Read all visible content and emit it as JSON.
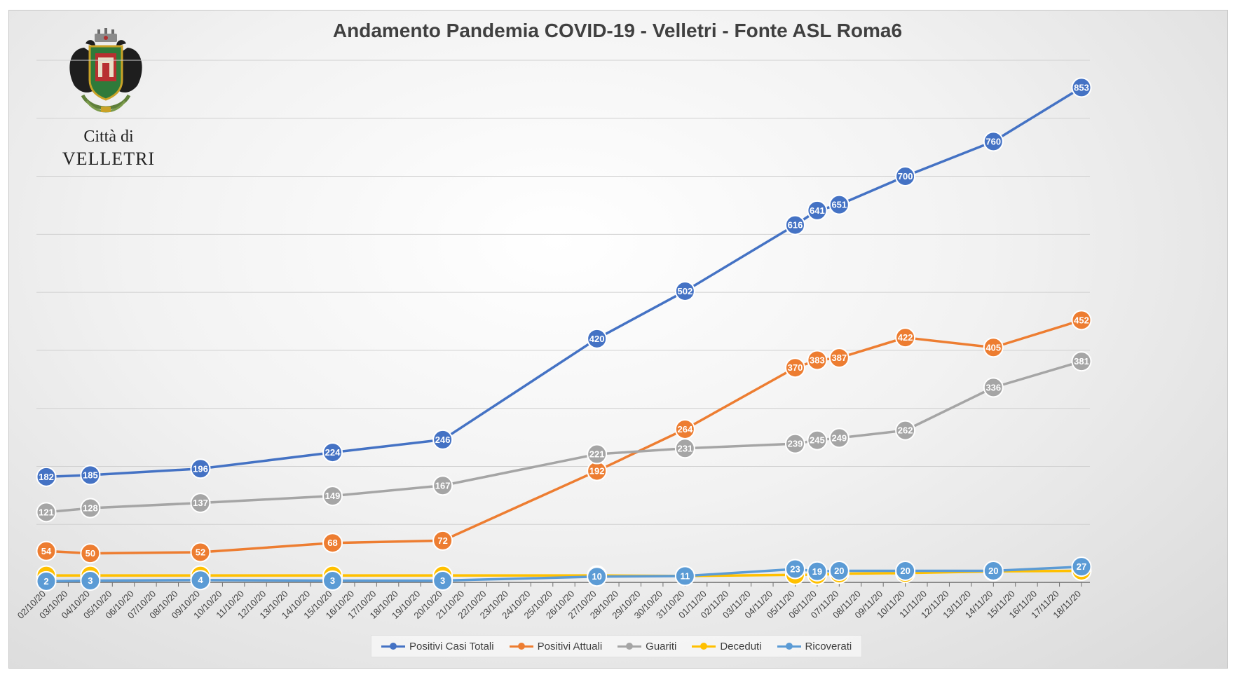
{
  "chart_data": {
    "type": "line",
    "title": "Andamento Pandemia COVID-19 - Velletri - Fonte ASL Roma6",
    "xlabel": "",
    "ylabel": "",
    "ylim": [
      0,
      900
    ],
    "grid": true,
    "legend_position": "bottom",
    "categories": [
      "02/10/20",
      "03/10/20",
      "04/10/20",
      "05/10/20",
      "06/10/20",
      "07/10/20",
      "08/10/20",
      "09/10/20",
      "10/10/20",
      "11/10/20",
      "12/10/20",
      "13/10/20",
      "14/10/20",
      "15/10/20",
      "16/10/20",
      "17/10/20",
      "18/10/20",
      "19/10/20",
      "20/10/20",
      "21/10/20",
      "22/10/20",
      "23/10/20",
      "24/10/20",
      "25/10/20",
      "26/10/20",
      "27/10/20",
      "28/10/20",
      "29/10/20",
      "30/10/20",
      "31/10/20",
      "01/11/20",
      "02/11/20",
      "03/11/20",
      "04/11/20",
      "05/11/20",
      "06/11/20",
      "07/11/20",
      "08/11/20",
      "09/11/20",
      "10/11/20",
      "11/11/20",
      "12/11/20",
      "13/11/20",
      "14/11/20",
      "15/11/20",
      "16/11/20",
      "17/11/20",
      "18/11/20"
    ],
    "series": [
      {
        "name": "Positivi Casi Totali",
        "color": "#4472c4",
        "x": [
          "02/10/20",
          "04/10/20",
          "09/10/20",
          "15/10/20",
          "20/10/20",
          "27/10/20",
          "31/10/20",
          "05/11/20",
          "06/11/20",
          "07/11/20",
          "10/11/20",
          "14/11/20",
          "18/11/20"
        ],
        "values": [
          182,
          185,
          196,
          224,
          246,
          420,
          502,
          616,
          641,
          651,
          700,
          760,
          853
        ]
      },
      {
        "name": "Positivi Attuali",
        "color": "#ed7d31",
        "x": [
          "02/10/20",
          "04/10/20",
          "09/10/20",
          "15/10/20",
          "20/10/20",
          "27/10/20",
          "31/10/20",
          "05/11/20",
          "06/11/20",
          "07/11/20",
          "10/11/20",
          "14/11/20",
          "18/11/20"
        ],
        "values": [
          54,
          50,
          52,
          68,
          72,
          192,
          264,
          370,
          383,
          387,
          422,
          405,
          452
        ]
      },
      {
        "name": "Guariti",
        "color": "#a5a5a5",
        "x": [
          "02/10/20",
          "04/10/20",
          "09/10/20",
          "15/10/20",
          "20/10/20",
          "27/10/20",
          "31/10/20",
          "05/11/20",
          "06/11/20",
          "07/11/20",
          "10/11/20",
          "14/11/20",
          "18/11/20"
        ],
        "values": [
          121,
          128,
          137,
          149,
          167,
          221,
          231,
          239,
          245,
          249,
          262,
          336,
          381
        ]
      },
      {
        "name": "Deceduti",
        "color": "#ffc000",
        "x": [
          "02/10/20",
          "04/10/20",
          "09/10/20",
          "15/10/20",
          "20/10/20",
          "27/10/20",
          "31/10/20",
          "05/11/20",
          "06/11/20",
          "07/11/20",
          "10/11/20",
          "14/11/20",
          "18/11/20"
        ],
        "values": [
          12,
          12,
          12,
          12,
          12,
          12,
          11,
          13,
          13,
          15,
          16,
          19,
          20
        ]
      },
      {
        "name": "Ricoverati",
        "color": "#5b9bd5",
        "x": [
          "02/10/20",
          "04/10/20",
          "09/10/20",
          "15/10/20",
          "20/10/20",
          "27/10/20",
          "31/10/20",
          "05/11/20",
          "06/11/20",
          "07/11/20",
          "10/11/20",
          "14/11/20",
          "18/11/20"
        ],
        "values": [
          2,
          3,
          4,
          3,
          3,
          10,
          11,
          23,
          19,
          20,
          20,
          20,
          27
        ]
      }
    ]
  },
  "logo": {
    "line1": "Città di",
    "line2": "VELLETRI",
    "icon": "city-coat-of-arms-icon"
  }
}
